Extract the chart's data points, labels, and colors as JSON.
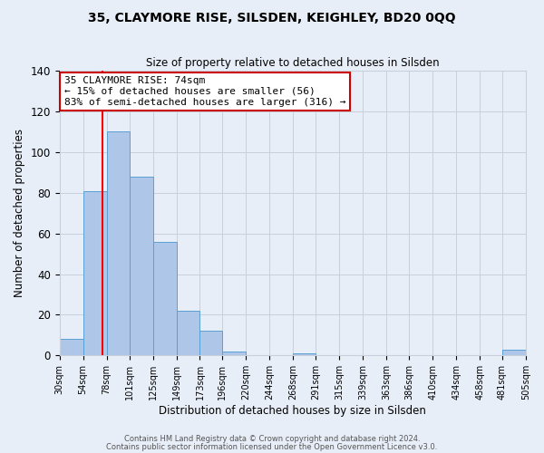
{
  "title": "35, CLAYMORE RISE, SILSDEN, KEIGHLEY, BD20 0QQ",
  "subtitle": "Size of property relative to detached houses in Silsden",
  "xlabel": "Distribution of detached houses by size in Silsden",
  "ylabel": "Number of detached properties",
  "bar_edges": [
    30,
    54,
    78,
    101,
    125,
    149,
    173,
    196,
    220,
    244,
    268,
    291,
    315,
    339,
    363,
    386,
    410,
    434,
    458,
    481,
    505
  ],
  "bar_heights": [
    8,
    81,
    110,
    88,
    56,
    22,
    12,
    2,
    0,
    0,
    1,
    0,
    0,
    0,
    0,
    0,
    0,
    0,
    0,
    3
  ],
  "tick_labels": [
    "30sqm",
    "54sqm",
    "78sqm",
    "101sqm",
    "125sqm",
    "149sqm",
    "173sqm",
    "196sqm",
    "220sqm",
    "244sqm",
    "268sqm",
    "291sqm",
    "315sqm",
    "339sqm",
    "363sqm",
    "386sqm",
    "410sqm",
    "434sqm",
    "458sqm",
    "481sqm",
    "505sqm"
  ],
  "bar_color": "#aec6e8",
  "bar_edge_color": "#5a9fd4",
  "background_color": "#e8eef8",
  "grid_color": "#c8d0de",
  "red_line_x": 74,
  "annotation_title": "35 CLAYMORE RISE: 74sqm",
  "annotation_line1": "← 15% of detached houses are smaller (56)",
  "annotation_line2": "83% of semi-detached houses are larger (316) →",
  "annotation_box_color": "#ffffff",
  "annotation_border_color": "#cc0000",
  "ylim": [
    0,
    140
  ],
  "yticks": [
    0,
    20,
    40,
    60,
    80,
    100,
    120,
    140
  ],
  "footer1": "Contains HM Land Registry data © Crown copyright and database right 2024.",
  "footer2": "Contains public sector information licensed under the Open Government Licence v3.0."
}
